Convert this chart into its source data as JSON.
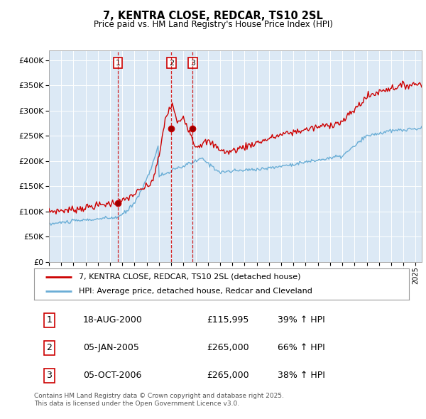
{
  "title": "7, KENTRA CLOSE, REDCAR, TS10 2SL",
  "subtitle": "Price paid vs. HM Land Registry's House Price Index (HPI)",
  "ylim": [
    0,
    420000
  ],
  "yticks": [
    0,
    50000,
    100000,
    150000,
    200000,
    250000,
    300000,
    350000,
    400000
  ],
  "sale_color": "#cc0000",
  "hpi_color": "#6baed6",
  "vline_color": "#cc0000",
  "plot_bg_color": "#dce9f5",
  "sale_points": [
    {
      "year": 2000.63,
      "price": 115995,
      "label": "1"
    },
    {
      "year": 2005.02,
      "price": 265000,
      "label": "2"
    },
    {
      "year": 2006.76,
      "price": 265000,
      "label": "3"
    }
  ],
  "vline_years": [
    2000.63,
    2005.02,
    2006.76
  ],
  "legend_entries": [
    "7, KENTRA CLOSE, REDCAR, TS10 2SL (detached house)",
    "HPI: Average price, detached house, Redcar and Cleveland"
  ],
  "table_rows": [
    {
      "num": "1",
      "date": "18-AUG-2000",
      "price": "£115,995",
      "change": "39% ↑ HPI"
    },
    {
      "num": "2",
      "date": "05-JAN-2005",
      "price": "£265,000",
      "change": "66% ↑ HPI"
    },
    {
      "num": "3",
      "date": "05-OCT-2006",
      "price": "£265,000",
      "change": "38% ↑ HPI"
    }
  ],
  "footer": "Contains HM Land Registry data © Crown copyright and database right 2025.\nThis data is licensed under the Open Government Licence v3.0.",
  "xmin": 1995,
  "xmax": 2025.5
}
